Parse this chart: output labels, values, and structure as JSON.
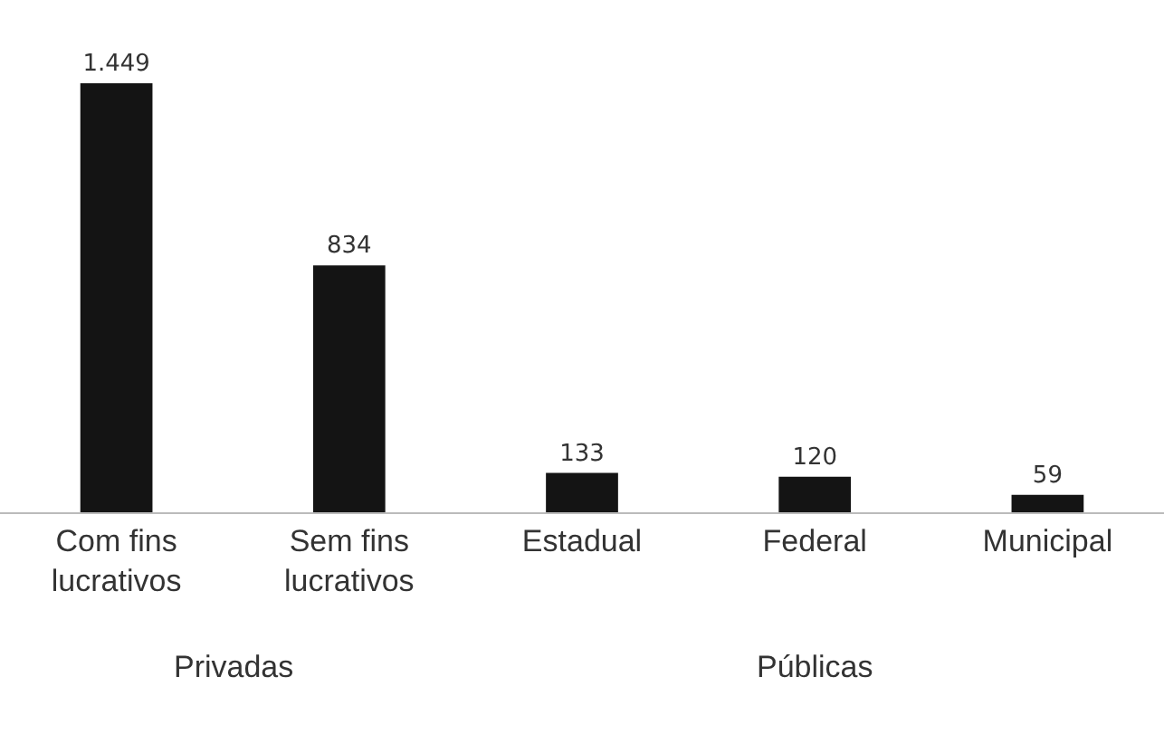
{
  "chart_data": {
    "type": "bar",
    "categories": [
      "Com fins\nlucrativos",
      "Sem fins\nlucrativos",
      "Estadual",
      "Federal",
      "Municipal"
    ],
    "values": [
      1449,
      834,
      133,
      120,
      59
    ],
    "value_labels": [
      "1.449",
      "834",
      "133",
      "120",
      "59"
    ],
    "color": "#141414",
    "annotations": [
      "Privadas",
      "Públicas"
    ]
  }
}
